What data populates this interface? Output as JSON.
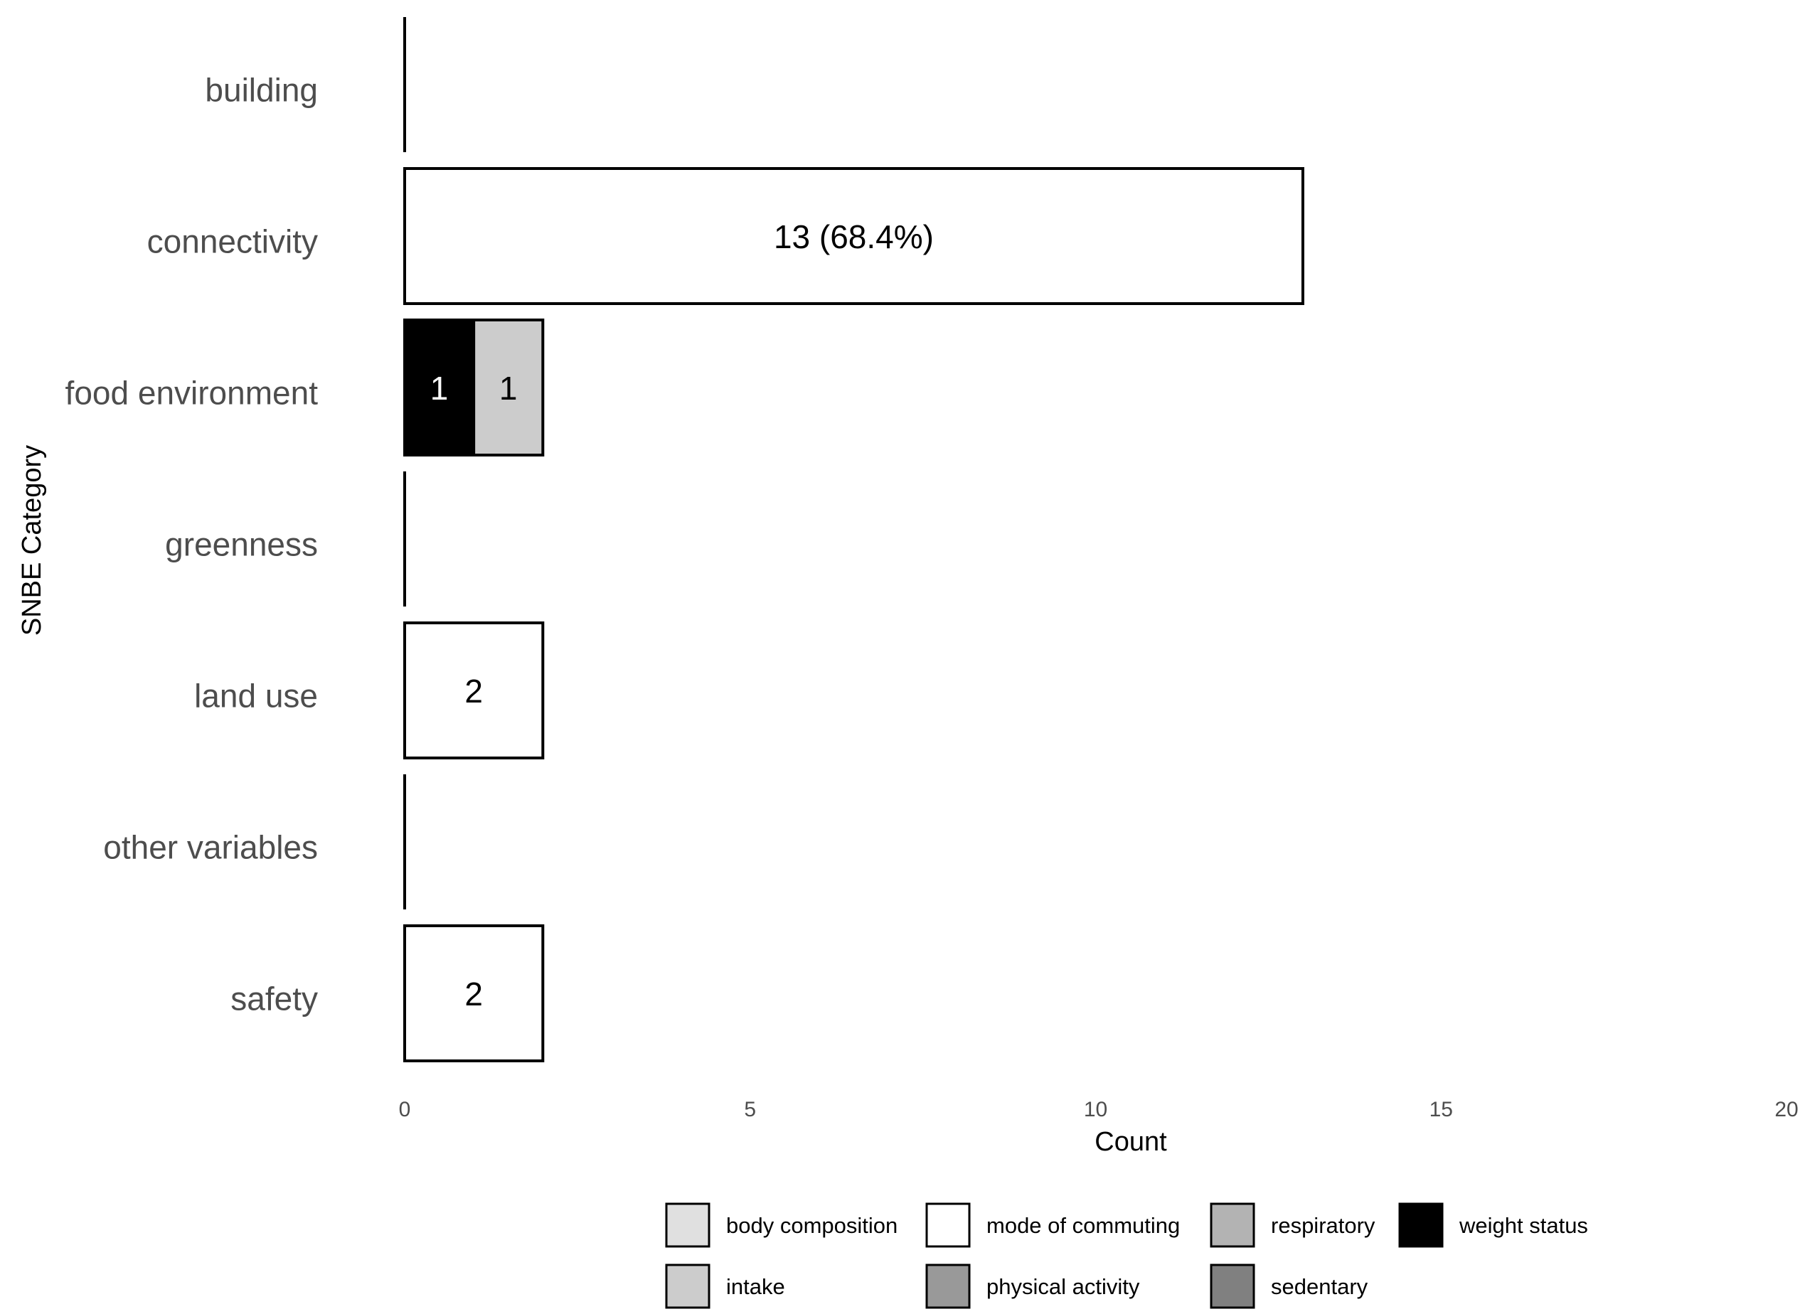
{
  "chart_data": {
    "type": "bar",
    "orientation": "horizontal",
    "stacked": true,
    "xlabel": "Count",
    "ylabel": "SNBE Category",
    "xlim": [
      0,
      20
    ],
    "xticks": [
      0,
      5,
      10,
      15,
      20
    ],
    "grid": false,
    "legend_position": "bottom",
    "categories": [
      "building",
      "connectivity",
      "food environment",
      "greenness",
      "land use",
      "other variables",
      "safety"
    ],
    "series": [
      {
        "name": "body composition",
        "color": "#e0e0e0",
        "values": [
          0,
          0,
          0,
          0,
          0,
          0,
          0
        ]
      },
      {
        "name": "intake",
        "color": "#cccccc",
        "values": [
          0,
          0,
          1,
          0,
          0,
          0,
          0
        ]
      },
      {
        "name": "mode of commuting",
        "color": "#ffffff",
        "values": [
          0,
          13,
          0,
          0,
          2,
          0,
          2
        ]
      },
      {
        "name": "physical activity",
        "color": "#999999",
        "values": [
          0,
          0,
          0,
          0,
          0,
          0,
          0
        ]
      },
      {
        "name": "respiratory",
        "color": "#b3b3b3",
        "values": [
          0,
          0,
          0,
          0,
          0,
          0,
          0
        ]
      },
      {
        "name": "sedentary",
        "color": "#808080",
        "values": [
          0,
          0,
          0,
          0,
          0,
          0,
          0
        ]
      },
      {
        "name": "weight status",
        "color": "#000000",
        "values": [
          0,
          0,
          1,
          0,
          0,
          0,
          0
        ]
      }
    ],
    "stack_order": [
      "weight status",
      "intake",
      "mode of commuting"
    ],
    "bar_labels": [
      {
        "category": "connectivity",
        "series": "mode of commuting",
        "text": "13 (68.4%)"
      },
      {
        "category": "food environment",
        "series": "weight status",
        "text": "1"
      },
      {
        "category": "food environment",
        "series": "intake",
        "text": "1"
      },
      {
        "category": "land use",
        "series": "mode of commuting",
        "text": "2"
      },
      {
        "category": "safety",
        "series": "mode of commuting",
        "text": "2"
      }
    ],
    "legend_order": [
      "body composition",
      "mode of commuting",
      "respiratory",
      "weight status",
      "intake",
      "physical activity",
      "sedentary"
    ]
  }
}
